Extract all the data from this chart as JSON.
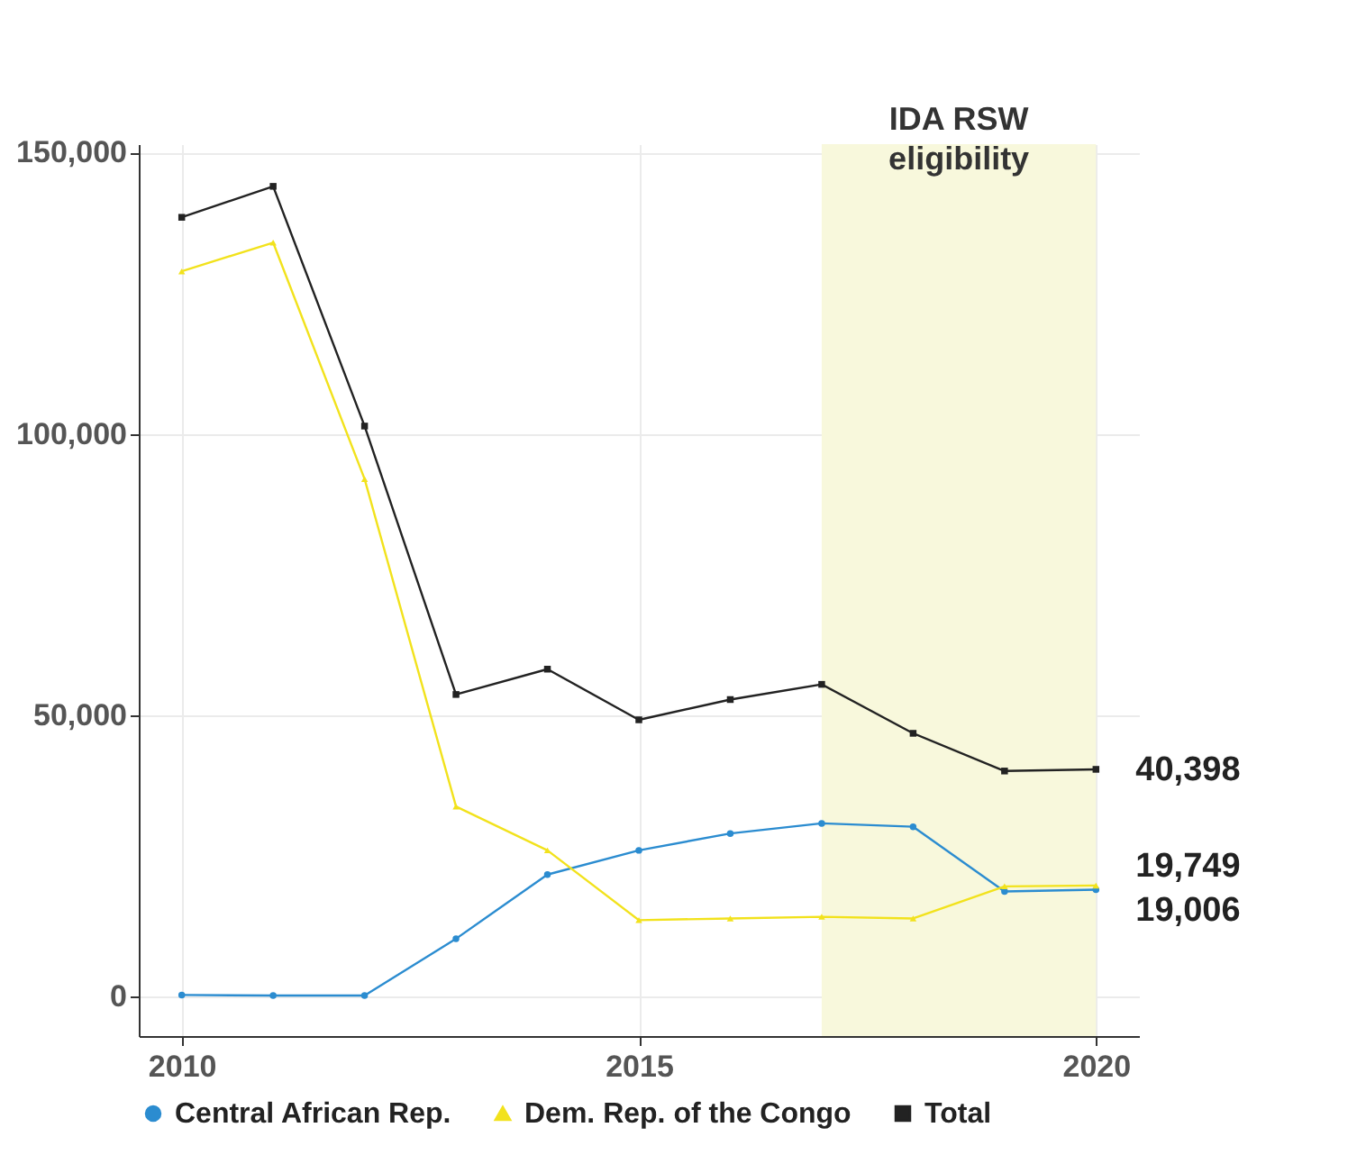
{
  "chart_data": {
    "type": "line",
    "x": [
      2010,
      2011,
      2012,
      2013,
      2014,
      2015,
      2016,
      2017,
      2018,
      2019,
      2020
    ],
    "series": [
      {
        "name": "Central African Rep.",
        "color": "#2b8cd0",
        "marker": "circle",
        "values": [
          300,
          200,
          200,
          10300,
          21700,
          26000,
          29000,
          30800,
          30200,
          18700,
          19006
        ],
        "value_labels": [
          null,
          null,
          null,
          null,
          null,
          null,
          null,
          null,
          null,
          null,
          "19,006"
        ]
      },
      {
        "name": "Dem. Rep. of the Congo",
        "color": "#f2e21c",
        "marker": "triangle",
        "values": [
          128900,
          134000,
          92000,
          33800,
          26000,
          13600,
          13900,
          14200,
          13900,
          19600,
          19749
        ],
        "value_labels": [
          null,
          null,
          null,
          null,
          null,
          null,
          null,
          null,
          null,
          null,
          "19,749"
        ]
      },
      {
        "name": "Total",
        "color": "#222222",
        "marker": "square",
        "values": [
          138500,
          144000,
          101400,
          53700,
          58200,
          49200,
          52800,
          55500,
          46800,
          40100,
          40398
        ],
        "value_labels": [
          null,
          null,
          null,
          null,
          null,
          null,
          null,
          null,
          null,
          null,
          "40,398"
        ]
      }
    ],
    "xlim": [
      2009.53,
      2020.47
    ],
    "xticks": [
      2010,
      2015,
      2020
    ],
    "ylim": [
      -7000,
      151500
    ],
    "yticks": [
      {
        "value": 0,
        "label": "0"
      },
      {
        "value": 50000,
        "label": "50,000"
      },
      {
        "value": 100000,
        "label": "100,000"
      },
      {
        "value": 150000,
        "label": "150,000"
      }
    ],
    "bands": [
      {
        "axis": "x",
        "from": 2017,
        "to": 2020,
        "label": "IDA RSW eligibility",
        "color": "#f8f8dc"
      }
    ],
    "grid": true,
    "legend": "bottom"
  }
}
